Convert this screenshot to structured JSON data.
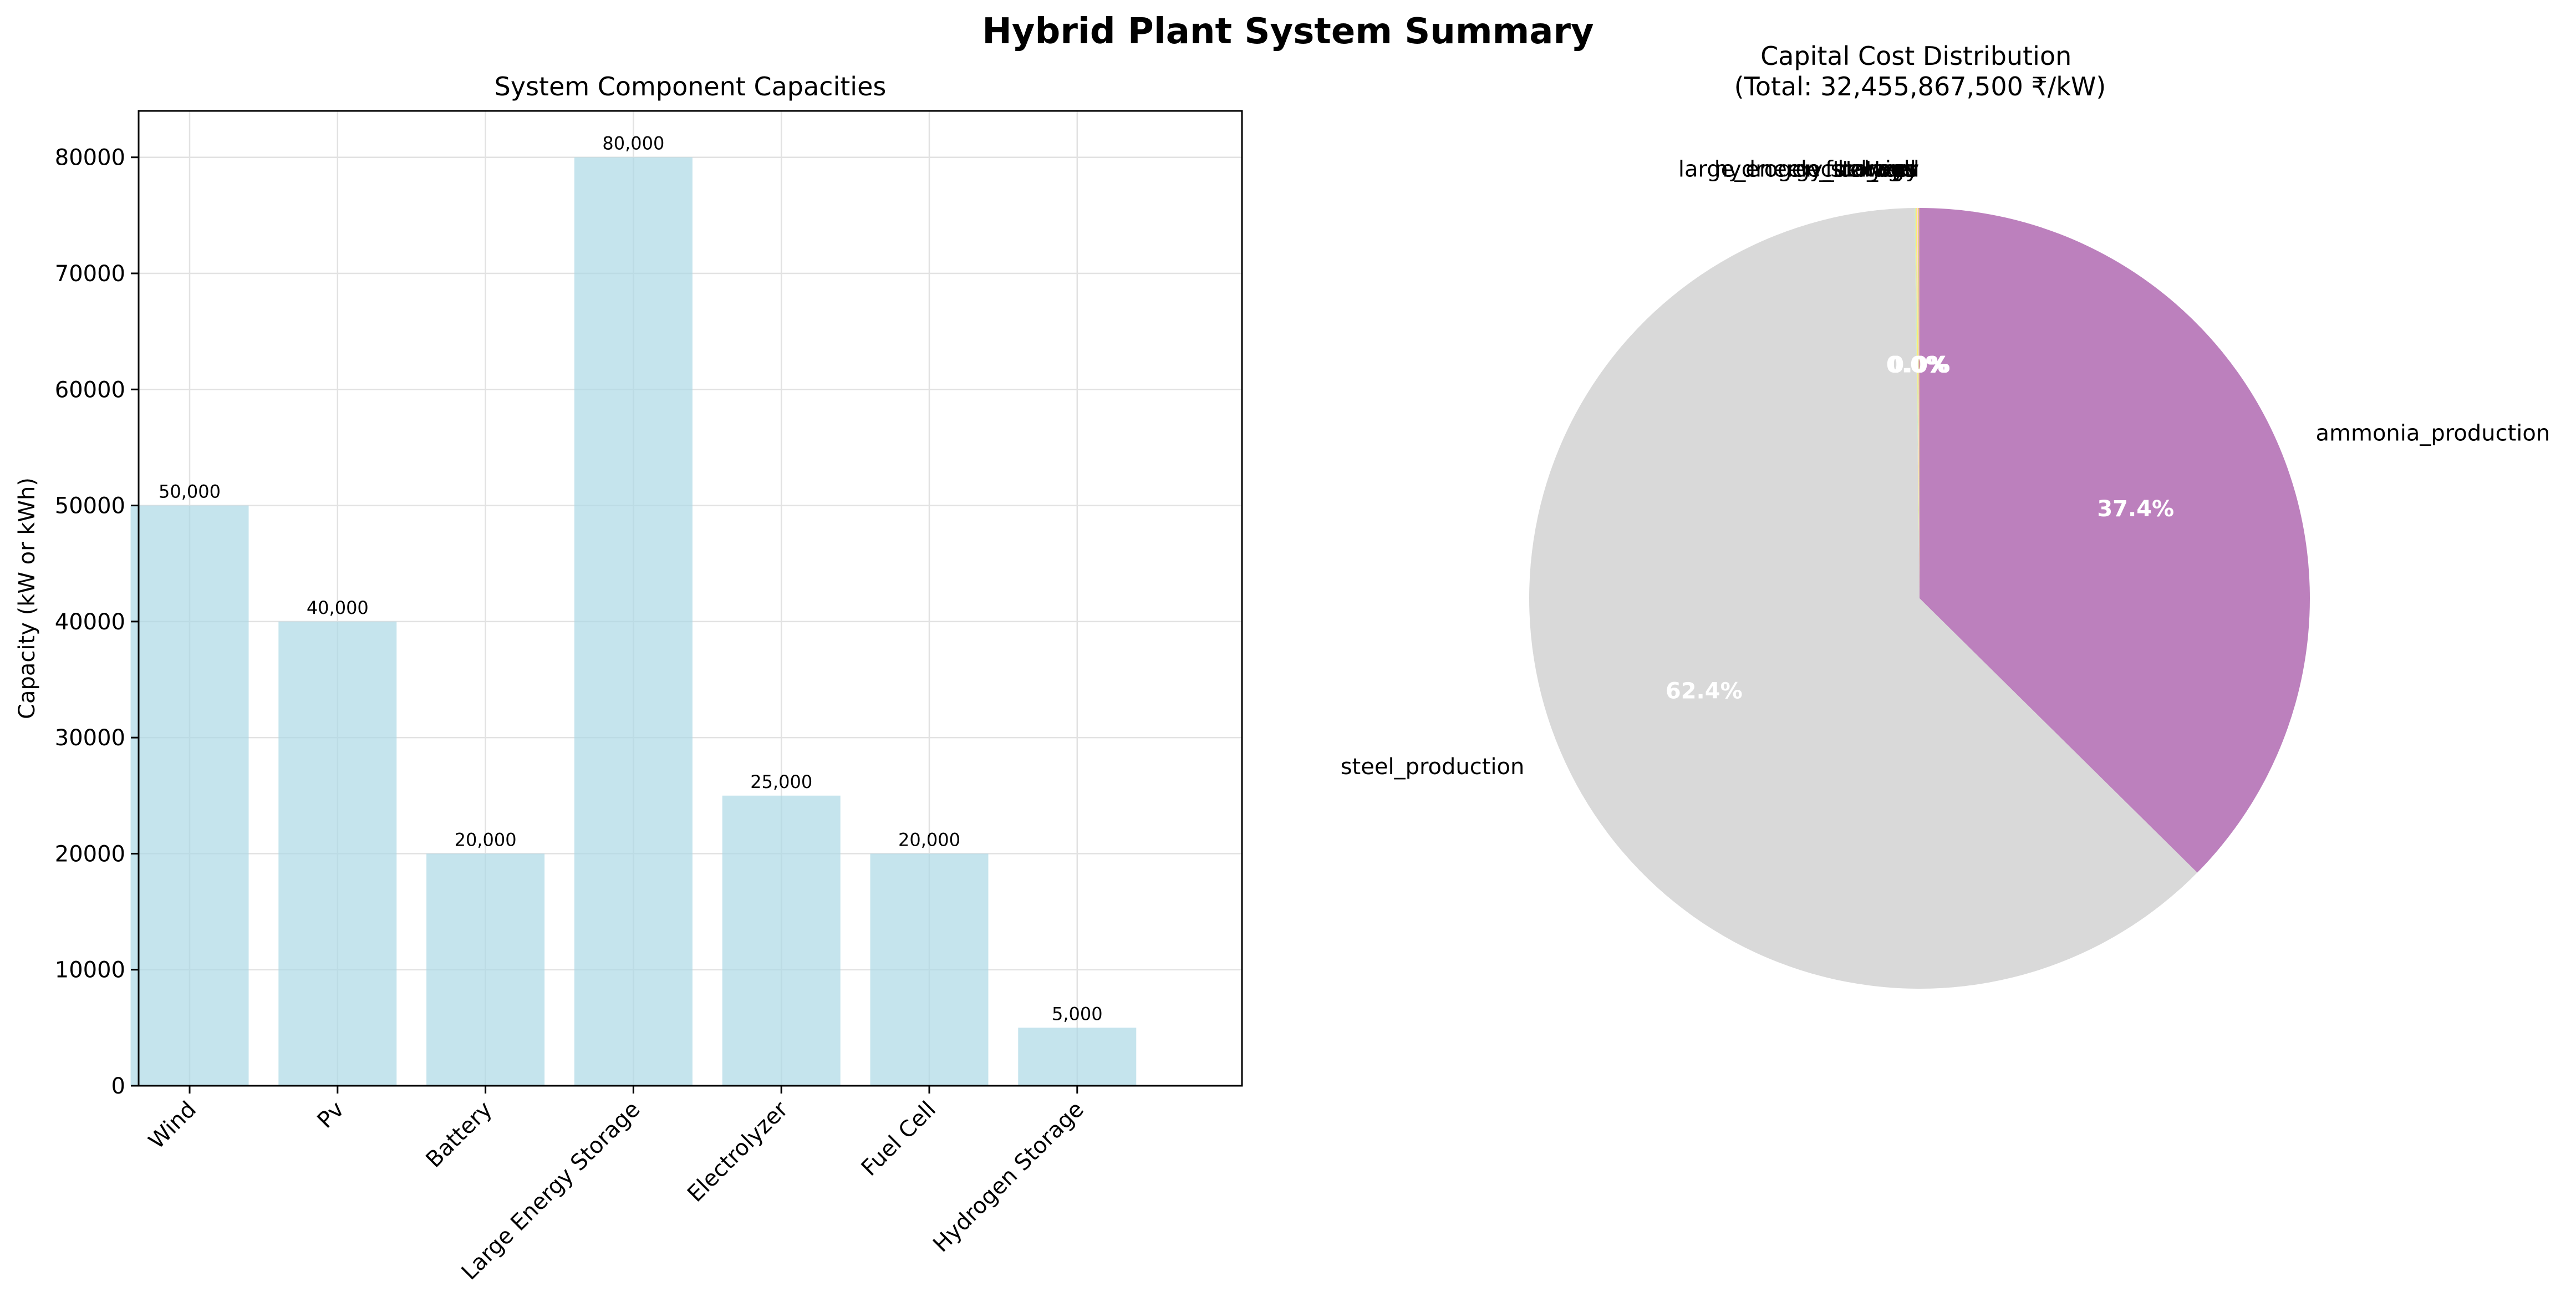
{
  "figure_title": "Hybrid Plant System Summary",
  "chart_data": [
    {
      "type": "bar",
      "title": "System Component Capacities",
      "xlabel": "",
      "ylabel": "Capacity (kW or kWh)",
      "categories": [
        "Wind",
        "Pv",
        "Battery",
        "Large Energy Storage",
        "Electrolyzer",
        "Fuel Cell",
        "Hydrogen Storage"
      ],
      "values": [
        50000,
        40000,
        20000,
        80000,
        25000,
        20000,
        5000
      ],
      "value_labels": [
        "50,000",
        "40,000",
        "20,000",
        "80,000",
        "25,000",
        "20,000",
        "5,000"
      ],
      "ylim": [
        0,
        84000
      ],
      "yticks": [
        0,
        10000,
        20000,
        30000,
        40000,
        50000,
        60000,
        70000,
        80000
      ],
      "ytick_labels": [
        "0",
        "10000",
        "20000",
        "30000",
        "40000",
        "50000",
        "60000",
        "70000",
        "80000"
      ],
      "grid": true,
      "bar_color": "#add8e6",
      "xtick_rotation": 45
    },
    {
      "type": "pie",
      "title": "Capital Cost Distribution\n(Total: 32,455,867,500 ₹/kW)",
      "title_lines": [
        "Capital Cost Distribution",
        "(Total: 32,455,867,500 ₹/kW)"
      ],
      "start_angle": 90,
      "direction": "clockwise",
      "slices": [
        {
          "label": "ammonia_production",
          "percent": 37.4,
          "pct_label": "37.4%",
          "color": "#bc80bd"
        },
        {
          "label": "steel_production",
          "percent": 62.4,
          "pct_label": "62.4%",
          "color": "#d9d9d9"
        },
        {
          "label": "hydrogen_storage",
          "percent": 0.05,
          "pct_label": "0.0%",
          "color": "#ccebc5"
        },
        {
          "label": "fuel_cell",
          "percent": 0.05,
          "pct_label": "0.0%",
          "color": "#ffed6f"
        },
        {
          "label": "electrolyzer",
          "percent": 0.04,
          "pct_label": "0.0%",
          "color": "#fccde5"
        },
        {
          "label": "large_energy_storage",
          "percent": 0.02,
          "pct_label": "0.0%",
          "color": "#b3de69"
        },
        {
          "label": "battery",
          "percent": 0.02,
          "pct_label": "0.0%",
          "color": "#fdb462"
        },
        {
          "label": "pv",
          "percent": 0.01,
          "pct_label": "0.0%",
          "color": "#80b1d3"
        },
        {
          "label": "wind",
          "percent": 0.01,
          "pct_label": "0.0%",
          "color": "#fb8072"
        }
      ]
    }
  ]
}
